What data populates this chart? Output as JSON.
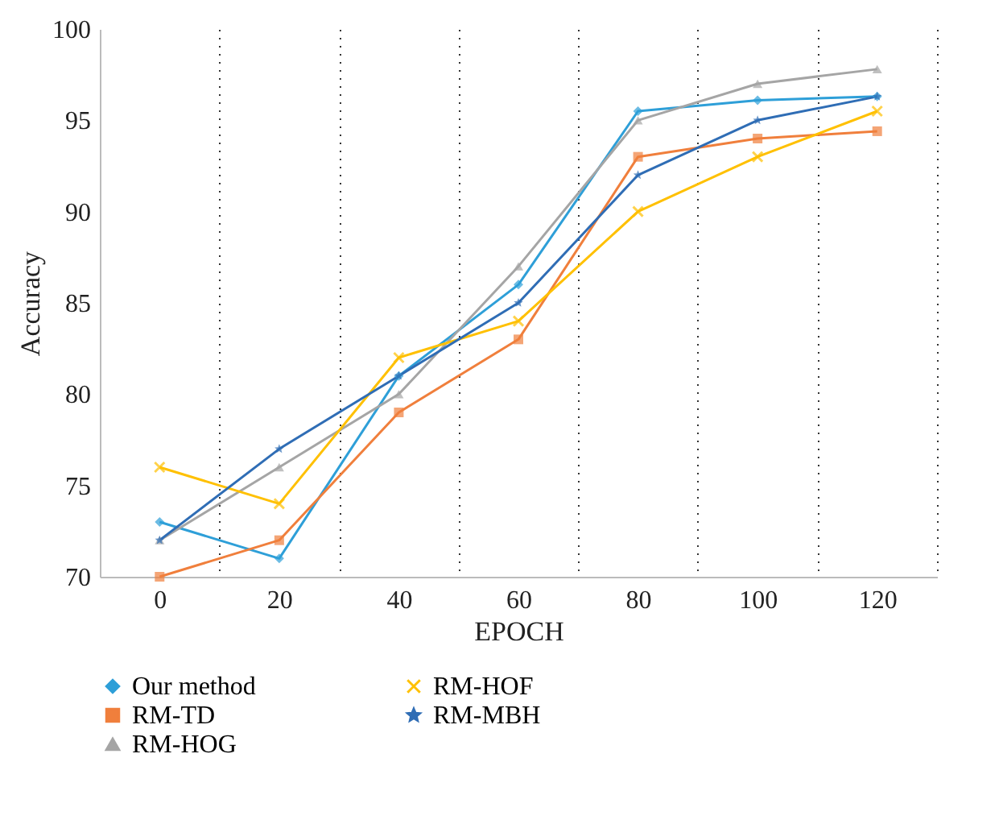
{
  "chart_data": {
    "type": "line",
    "xlabel": "EPOCH",
    "ylabel": "Accuracy",
    "categories": [
      "0",
      "20",
      "40",
      "60",
      "80",
      "100",
      "120"
    ],
    "ylim": [
      70,
      100
    ],
    "yticks": [
      70,
      75,
      80,
      85,
      90,
      95,
      100
    ],
    "grid": "x",
    "legend": "bottom",
    "line_style": "solid",
    "series": [
      {
        "name": "Our method",
        "color": "#2e9fd8",
        "marker": "diamond",
        "values": [
          73,
          71,
          81,
          86,
          95.5,
          96.1,
          96.3
        ]
      },
      {
        "name": "RM-TD",
        "color": "#f07f3c",
        "marker": "square",
        "values": [
          70,
          72,
          79,
          83,
          93,
          94,
          94.4
        ]
      },
      {
        "name": "RM-HOG",
        "color": "#a5a5a5",
        "marker": "triangle",
        "values": [
          72,
          76,
          80,
          87,
          95,
          97,
          97.8
        ]
      },
      {
        "name": "RM-HOF",
        "color": "#ffc000",
        "marker": "cross",
        "values": [
          76,
          74,
          82,
          84,
          90,
          93,
          95.5
        ]
      },
      {
        "name": "RM-MBH",
        "color": "#2f6db5",
        "marker": "star",
        "values": [
          72,
          77,
          81,
          85,
          92,
          95,
          96.3
        ]
      }
    ]
  }
}
